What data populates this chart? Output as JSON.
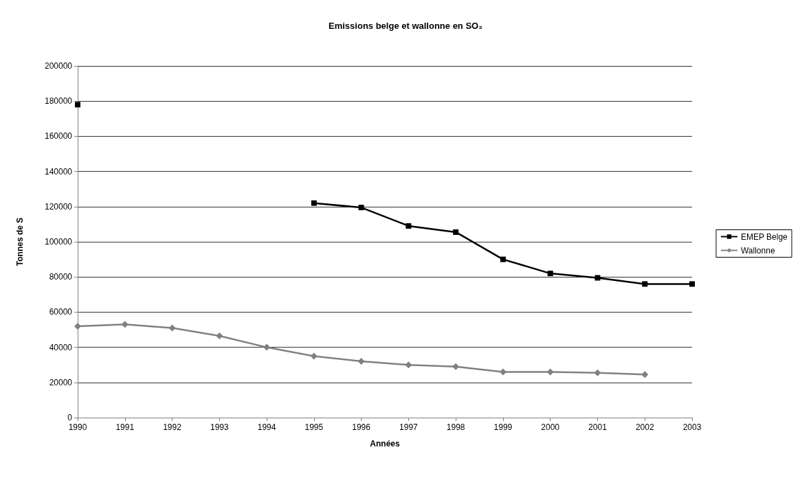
{
  "chart_data": {
    "type": "line",
    "title": "Emissions belge et wallonne en SO₂",
    "xlabel": "Années",
    "ylabel": "Tonnes de S",
    "categories": [
      "1990",
      "1991",
      "1992",
      "1993",
      "1994",
      "1995",
      "1996",
      "1997",
      "1998",
      "1999",
      "2000",
      "2001",
      "2002",
      "2003"
    ],
    "series": [
      {
        "name": "EMEP Belge",
        "color": "#000000",
        "marker": "square",
        "values": [
          178000,
          null,
          null,
          null,
          null,
          122000,
          119500,
          109000,
          105500,
          90000,
          82000,
          79500,
          76000,
          76000
        ]
      },
      {
        "name": "Wallonne",
        "color": "#808080",
        "marker": "diamond",
        "values": [
          52000,
          53000,
          51000,
          46500,
          40000,
          35000,
          32000,
          30000,
          29000,
          26000,
          26000,
          25500,
          24500,
          null
        ]
      }
    ],
    "ylim": [
      0,
      200000
    ],
    "yticks": [
      0,
      20000,
      40000,
      60000,
      80000,
      100000,
      120000,
      140000,
      160000,
      180000,
      200000
    ],
    "grid": "y",
    "legend": "right",
    "line_style": "solid"
  }
}
